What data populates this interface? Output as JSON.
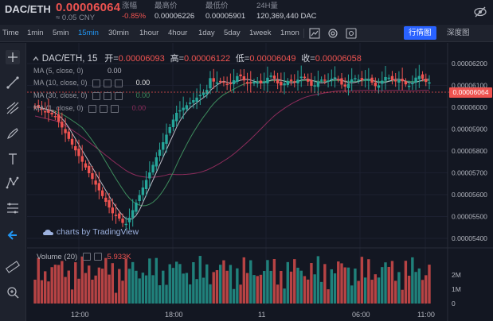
{
  "ticker": {
    "pair": "DAC/ETH",
    "price": "0.00006064",
    "cny": "≈ 0.05 CNY",
    "stats": [
      {
        "label": "涨幅",
        "value": "-0.85%",
        "color": "red"
      },
      {
        "label": "最高价",
        "value": "0.00006226",
        "color": "normal"
      },
      {
        "label": "最低价",
        "value": "0.00005901",
        "color": "normal"
      },
      {
        "label": "24H量",
        "value": "120,369,440 DAC",
        "color": "normal"
      }
    ],
    "settings_icon": "eye-off-icon"
  },
  "toolbar": {
    "intervals": [
      "Time",
      "1min",
      "5min",
      "15min",
      "30min",
      "1hour",
      "4hour",
      "1day",
      "5day",
      "1week",
      "1mon"
    ],
    "active_interval": "15min",
    "tab_market": "行情图",
    "tab_depth": "深度图"
  },
  "chart": {
    "symbol_title": "DAC/ETH, 15",
    "ohlc": {
      "open_label": "开=",
      "open": "0.00006093",
      "high_label": "高=",
      "high": "0.00006122",
      "low_label": "低=",
      "low": "0.00006049",
      "close_label": "收=",
      "close": "0.00006058"
    },
    "ma_rows": [
      {
        "label": "MA (5, close, 0)",
        "value": "0.00"
      },
      {
        "label": "MA (10, close, 0)",
        "value": "0.00"
      },
      {
        "label": "MA (30, close, 0)",
        "value": "0.00"
      },
      {
        "label": "MA (1, close, 0)",
        "value": "0.00"
      }
    ],
    "price_axis": [
      "0.00006200",
      "0.00006100",
      "0.00006000",
      "0.00005900",
      "0.00005800",
      "0.00005700",
      "0.00005600",
      "0.00005500",
      "0.00005400"
    ],
    "current_price_tag": "0.00006064",
    "time_axis": [
      "12:00",
      "18:00",
      "11",
      "06:00",
      "11:00"
    ],
    "watermark": "charts by TradingView",
    "volume_label": "Volume (20)",
    "volume_value": "5.933K",
    "volume_axis": [
      "2M",
      "1M",
      "0"
    ]
  },
  "colors": {
    "up": "#26a69a",
    "down": "#ef5350",
    "accent": "#2962ff"
  }
}
